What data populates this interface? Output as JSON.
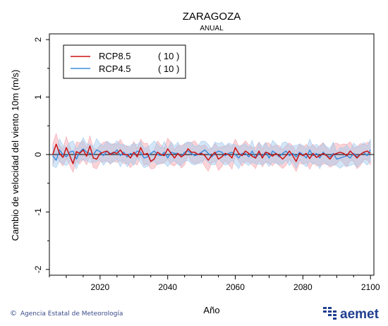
{
  "chart_data": {
    "type": "line",
    "title": "ZARAGOZA",
    "subtitle": "ANUAL",
    "xlabel": "Año",
    "ylabel": "Cambio de velocidad del viento 10m (m/s)",
    "xlim": [
      2005,
      2101
    ],
    "ylim": [
      -2.1,
      2.1
    ],
    "xticks": [
      2020,
      2040,
      2060,
      2080,
      2100
    ],
    "yticks": [
      2,
      1,
      0,
      -1,
      -2
    ],
    "grid": false,
    "legend_position": "top-left",
    "zero_line": true,
    "series": [
      {
        "name": "RCP8.5",
        "count_label": "( 10 )",
        "color": "#cc1111",
        "band_color": "#f2a0a8",
        "start_year": 2006,
        "values": [
          0.0,
          0.18,
          0.02,
          -0.05,
          0.12,
          -0.02,
          -0.16,
          0.05,
          0.02,
          0.08,
          -0.03,
          0.15,
          -0.06,
          -0.08,
          0.02,
          0.04,
          0.06,
          0.0,
          0.04,
          0.02,
          0.08,
          0.0,
          0.0,
          -0.06,
          0.04,
          -0.04,
          0.12,
          0.0,
          0.02,
          -0.12,
          -0.08,
          0.04,
          0.0,
          -0.02,
          0.1,
          0.02,
          -0.06,
          0.02,
          -0.04,
          0.0,
          0.1,
          0.04,
          0.04,
          0.0,
          0.02,
          -0.02,
          -0.1,
          -0.02,
          0.04,
          -0.08,
          -0.04,
          0.02,
          0.0,
          -0.06,
          0.12,
          0.02,
          -0.02,
          0.06,
          0.02,
          -0.03,
          -0.06,
          0.06,
          -0.06,
          0.04,
          0.02,
          -0.03,
          0.02,
          -0.02,
          -0.08,
          -0.02,
          0.06,
          -0.02,
          -0.12,
          0.02,
          -0.02,
          0.02,
          -0.07,
          0.02,
          -0.05,
          -0.02,
          0.02,
          -0.02,
          -0.08,
          0.0,
          0.02,
          0.04,
          0.02,
          -0.02,
          0.06,
          0.0,
          -0.06,
          0.0,
          0.04,
          0.06,
          0.02
        ]
      },
      {
        "name": "RCP4.5",
        "count_label": "( 10 )",
        "color": "#3a8fe0",
        "band_color": "#9ec8ee",
        "start_year": 2006,
        "values": [
          -0.02,
          -0.1,
          0.08,
          0.0,
          -0.04,
          0.04,
          0.06,
          -0.08,
          0.04,
          0.1,
          0.04,
          0.02,
          0.0,
          0.08,
          0.05,
          -0.02,
          0.06,
          0.02,
          0.02,
          0.08,
          -0.02,
          0.04,
          -0.04,
          0.02,
          0.0,
          0.06,
          0.04,
          -0.06,
          -0.04,
          0.02,
          0.06,
          0.0,
          -0.02,
          0.04,
          -0.06,
          0.04,
          0.02,
          0.02,
          -0.04,
          0.04,
          0.06,
          0.02,
          -0.02,
          0.0,
          0.04,
          0.08,
          0.02,
          -0.04,
          0.02,
          0.06,
          0.04,
          -0.02,
          0.02,
          0.04,
          0.0,
          -0.06,
          0.02,
          0.02,
          -0.04,
          0.06,
          -0.06,
          0.02,
          -0.02,
          0.04,
          -0.06,
          0.06,
          0.02,
          -0.04,
          0.02,
          0.06,
          -0.02,
          0.02,
          -0.04,
          0.04,
          0.0,
          -0.06,
          0.08,
          -0.02,
          0.02,
          -0.06,
          0.04,
          -0.02,
          -0.04,
          0.02,
          -0.08,
          -0.06,
          -0.04,
          -0.02,
          -0.06,
          0.02,
          -0.04,
          0.0,
          0.04,
          -0.02,
          0.08
        ]
      }
    ]
  },
  "footer": {
    "credit": "Agencia Estatal de Meteorología",
    "logo_text": "aemet"
  }
}
